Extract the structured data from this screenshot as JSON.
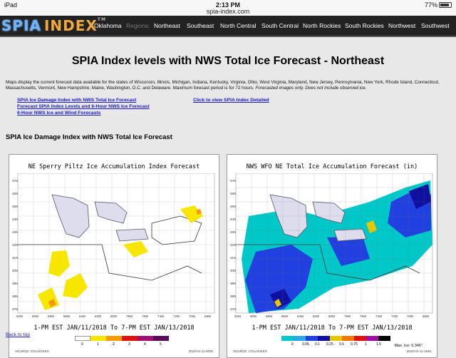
{
  "status": {
    "device": "iPad",
    "time": "2:13 PM",
    "url": "spia-index.com",
    "battery": "77%"
  },
  "nav": {
    "logo_a": "SPIA",
    "logo_b": "INDEX",
    "logo_tm": "TM",
    "items": [
      "Oklahoma",
      "Regions:",
      "Northeast",
      "Southeast",
      "North Central",
      "South Central",
      "North Rockies",
      "South Rockies",
      "Northwest",
      "Southwest"
    ]
  },
  "page": {
    "title": "SPIA Index levels with NWS Total Ice Forecast - Northeast",
    "description": "Maps display the current forecast data available for the states of Wisconsin, Illinois, Michigan, Indiana, Kentucky, Virginia, Ohio, West Virginia, Maryland, New Jersey, Pennsylvania, New York, Rhode Island, Connecticut, Massachusetts, Vermont, New Hampshire, Maine, Washington, D.C. and Delaware. Maximum forecast period is for 72 hours.",
    "description_italic": "Forecasted images only. Does not include observed ice.",
    "links": [
      "SPIA Ice Damage Index with NWS Total Ice Forecast",
      "Forecast SPIA Index Levels and 6-Hour NWS Ice Forecast",
      "6-Hour NWS Ice and Wind Forecasts"
    ],
    "detail_link": "Click to view SPIA Index Detailed",
    "section_title": "SPIA Ice Damage Index with NWS Total Ice Forecast",
    "back_to_top": "Back to top"
  },
  "maps": [
    {
      "title": "NE Sperry Piltz Ice Accumulation Index Forecast",
      "date": "1-PM EST JAN/11/2018 To 7-PM EST JAN/13/2018",
      "foot_left": "SOURCE: COLA/GEES",
      "foot_right": "2018-01-11-2000",
      "legend_labels": [
        "0",
        "1",
        "2",
        "3",
        "4",
        "5"
      ],
      "legend_colors": [
        "#ffffff",
        "#f7e600",
        "#f59b00",
        "#e01010",
        "#a01070",
        "#5a0a5a"
      ]
    },
    {
      "title": "NWS WFO NE Total Ice Accumulation Forecast (in)",
      "date": "1-PM EST JAN/11/2018 To 7-PM EST JAN/13/2018",
      "foot_left": "SOURCE: COLA/GEES",
      "foot_right": "2018-01-11-1946",
      "max_ice": "Max. Ice: 0.345\"",
      "legend_labels": [
        "0",
        "0.05",
        "0.1",
        "0.25",
        "0.5",
        "0.75",
        "1",
        "1.5"
      ],
      "legend_colors": [
        "#00c8c8",
        "#2aa8e6",
        "#2040e0",
        "#1010a0",
        "#e6c800",
        "#f07800",
        "#e01010",
        "#a010a0",
        "#000000"
      ]
    }
  ],
  "axes": {
    "lats": [
      "47N",
      "46N",
      "45N",
      "44N",
      "43N",
      "42N",
      "41N",
      "40N",
      "39N",
      "38N",
      "37N"
    ],
    "lons": [
      "92W",
      "90W",
      "88W",
      "86W",
      "84W",
      "82W",
      "80W",
      "78W",
      "76W",
      "74W",
      "72W",
      "70W",
      "68W"
    ]
  },
  "colors": {
    "nav_bg": "#222222",
    "link": "#1a1acc",
    "spia_yellow": "#f7e600",
    "ice_cyan": "#00c8c8",
    "ice_blue": "#2040e0"
  }
}
